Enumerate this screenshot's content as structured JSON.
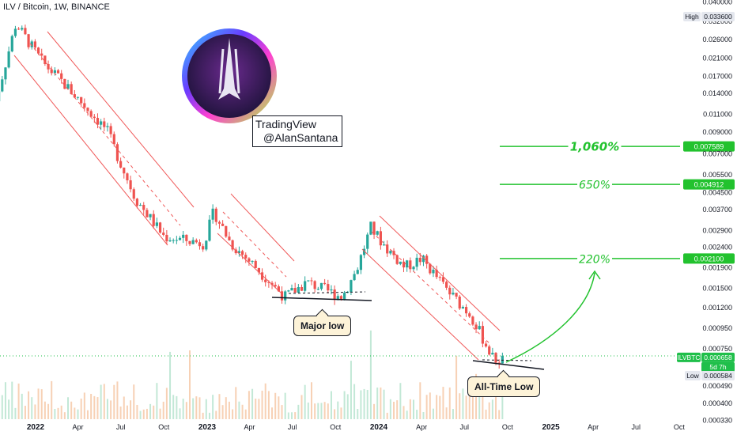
{
  "header": {
    "title": "ILV / Bitcoin, 1W, BINANCE"
  },
  "watermark": {
    "line1": "TradingView",
    "line2": "@AlanSantana",
    "logo_icon": "illuvium-logo-icon"
  },
  "annotations": {
    "major_low": "Major low",
    "all_time_low": "All-Time Low"
  },
  "targets": [
    {
      "label": "1,060%",
      "price": "0.007589"
    },
    {
      "label": "650%",
      "price": "0.004912"
    },
    {
      "label": "220%",
      "price": "0.002100"
    }
  ],
  "price_badges": {
    "high_label": "High",
    "high_value": "0.033600",
    "symbol": "ILVBTC",
    "current_value": "0.000658",
    "countdown": "5d 7h",
    "low_label": "Low",
    "low_value": "0.000584"
  },
  "colors": {
    "up": "#26a69a",
    "down": "#ef5350",
    "target_line": "#22c22e",
    "current_badge": "#1fbf4a"
  },
  "chart_data": {
    "type": "candlestick",
    "symbol": "ILVBTC",
    "scale": "log",
    "y_ticks": [
      "0.040000",
      "0.032000",
      "0.026000",
      "0.021000",
      "0.017000",
      "0.014000",
      "0.011000",
      "0.009000",
      "0.007000",
      "0.005500",
      "0.004500",
      "0.003700",
      "0.002900",
      "0.002400",
      "0.001900",
      "0.001500",
      "0.001200",
      "0.000950",
      "0.000750",
      "0.000490",
      "0.000400",
      "0.000330"
    ],
    "x_ticks": [
      "2022",
      "Apr",
      "Jul",
      "Oct",
      "2023",
      "Apr",
      "Jul",
      "Oct",
      "2024",
      "Apr",
      "Jul",
      "Oct",
      "2025",
      "Apr",
      "Jul",
      "Oct"
    ],
    "x_ticks_bold": [
      "2022",
      "2023",
      "2024",
      "2025"
    ],
    "high": 0.0336,
    "low": 0.000584,
    "last": 0.000658,
    "target_levels": [
      0.007589,
      0.004912,
      0.0021
    ],
    "path_anchors": [
      [
        "2021-10-01",
        0.011
      ],
      [
        "2021-11-20",
        0.031
      ],
      [
        "2022-01-15",
        0.02
      ],
      [
        "2022-03-15",
        0.0145
      ],
      [
        "2022-06-01",
        0.0092
      ],
      [
        "2022-08-01",
        0.0042
      ],
      [
        "2022-10-01",
        0.0027
      ],
      [
        "2022-12-25",
        0.0025
      ],
      [
        "2023-01-15",
        0.0036
      ],
      [
        "2023-02-20",
        0.0025
      ],
      [
        "2023-04-15",
        0.0019
      ],
      [
        "2023-06-15",
        0.00135
      ],
      [
        "2023-08-01",
        0.0016
      ],
      [
        "2023-10-15",
        0.00135
      ],
      [
        "2023-11-15",
        0.00185
      ],
      [
        "2023-12-15",
        0.003
      ],
      [
        "2024-01-15",
        0.0024
      ],
      [
        "2024-02-25",
        0.0019
      ],
      [
        "2024-04-01",
        0.0021
      ],
      [
        "2024-06-01",
        0.0014
      ],
      [
        "2024-07-15",
        0.0011
      ],
      [
        "2024-09-01",
        0.00066
      ],
      [
        "2024-09-25",
        0.000658
      ]
    ]
  }
}
